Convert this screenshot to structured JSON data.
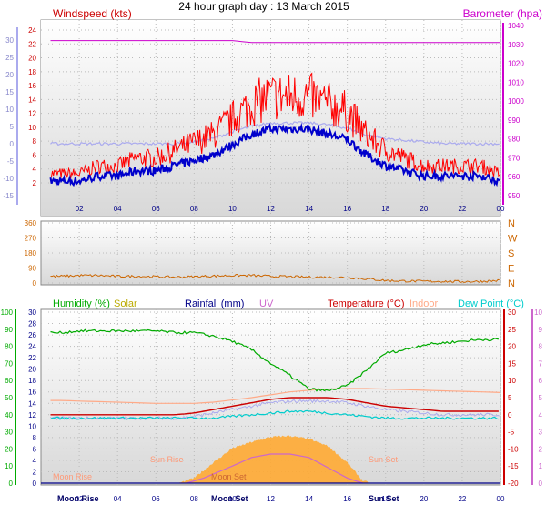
{
  "title": "24 hour graph day : 13 March 2015",
  "x_ticks": [
    "02",
    "04",
    "06",
    "08",
    "10",
    "12",
    "14",
    "16",
    "18",
    "20",
    "22",
    "00"
  ],
  "moon_labels": [
    "Moon Rise",
    "Moon Set",
    "Sun Set"
  ],
  "colors": {
    "wind": "#ff0000",
    "gust_avg": "#0000cc",
    "baro": "#cc00cc",
    "temp_light": "#aaaaee",
    "direction": "#cc6600",
    "humidity": "#00aa00",
    "solar": "#ffaa33",
    "uv": "#cc66cc",
    "temperature": "#cc0000",
    "indoor": "#ffaa88",
    "dewpoint": "#00cccc",
    "rainfall": "#000088"
  },
  "panels": {
    "wind": {
      "title": "Windspeed (kts)",
      "right_title": "Barometer (hpa)",
      "left_ticks": [
        "30",
        "25",
        "20",
        "15",
        "10",
        "5",
        "0",
        "-5",
        "-10",
        "-15"
      ],
      "wind_ticks": [
        "24",
        "22",
        "20",
        "18",
        "16",
        "14",
        "12",
        "10",
        "8",
        "6",
        "4",
        "2"
      ],
      "right_ticks": [
        "1040",
        "1030",
        "1020",
        "1010",
        "1000",
        "990",
        "980",
        "970",
        "960",
        "950"
      ]
    },
    "direction": {
      "ticks": [
        "360",
        "270",
        "180",
        "90",
        "0"
      ],
      "compass": [
        "N",
        "W",
        "S",
        "E",
        "N"
      ]
    },
    "climate": {
      "legend": {
        "humidity": "Humidity (%)",
        "solar": "Solar",
        "rainfall": "Rainfall (mm)",
        "uv": "UV",
        "temperature": "Temperature (°C)",
        "indoor": "Indoor",
        "dewpoint": "Dew Point (°C)"
      },
      "humidity_ticks": [
        "100",
        "90",
        "80",
        "70",
        "60",
        "50",
        "40",
        "30",
        "20",
        "10",
        "0"
      ],
      "rain_ticks": [
        "30",
        "28",
        "26",
        "24",
        "22",
        "20",
        "18",
        "16",
        "14",
        "12",
        "10",
        "8",
        "6",
        "4",
        "2",
        "0"
      ],
      "temp_ticks": [
        "30",
        "25",
        "20",
        "15",
        "10",
        "5",
        "0",
        "-5",
        "-10",
        "-15",
        "-20"
      ],
      "uv_ticks": [
        "10",
        "9",
        "8",
        "7",
        "6",
        "5",
        "4",
        "3",
        "2",
        "1",
        "0"
      ],
      "sun_labels": [
        "Sun Rise",
        "Sun Set",
        "Moon Rise",
        "Moon Set"
      ]
    }
  },
  "chart_data": [
    {
      "type": "line",
      "title": "Windspeed (kts)",
      "x": [
        1,
        2,
        3,
        4,
        5,
        6,
        7,
        8,
        9,
        10,
        11,
        12,
        13,
        14,
        15,
        16,
        17,
        18,
        19,
        20,
        21,
        22,
        23,
        24
      ],
      "series": [
        {
          "name": "Windspeed (kts)",
          "values": [
            3,
            3,
            4,
            4,
            5,
            5,
            6,
            7,
            8,
            10,
            12,
            13,
            13,
            13,
            12,
            11,
            8,
            6,
            5,
            4,
            4,
            4,
            4,
            3
          ]
        },
        {
          "name": "Barometer (hpa)",
          "values": [
            1032,
            1032,
            1032,
            1032,
            1032,
            1032,
            1032,
            1032,
            1032,
            1032,
            1031,
            1031,
            1031,
            1031,
            1031,
            1031,
            1031,
            1031,
            1031,
            1031,
            1031,
            1031,
            1031,
            1031
          ]
        }
      ],
      "ylim": [
        -15,
        30
      ]
    },
    {
      "type": "line",
      "title": "",
      "x": [
        1,
        2,
        3,
        4,
        5,
        6,
        7,
        8,
        9,
        10,
        11,
        12,
        13,
        14,
        15,
        16,
        17,
        18,
        19,
        20,
        21,
        22,
        23,
        24
      ],
      "series": [
        {
          "name": "",
          "values": [
            40,
            45,
            45,
            40,
            40,
            38,
            35,
            38,
            42,
            45,
            45,
            40,
            38,
            35,
            35,
            33,
            25,
            15,
            12,
            10,
            10,
            8,
            10,
            15
          ]
        }
      ],
      "ylim": [
        0,
        360
      ]
    },
    {
      "type": "line",
      "title": "",
      "x": [
        1,
        2,
        3,
        4,
        5,
        6,
        7,
        8,
        9,
        10,
        11,
        12,
        13,
        14,
        15,
        16,
        17,
        18,
        19,
        20,
        21,
        22,
        23,
        24
      ],
      "series": [
        {
          "name": "Humidity (%)",
          "values": [
            88,
            89,
            89,
            89,
            89,
            89,
            88,
            88,
            86,
            83,
            78,
            70,
            63,
            55,
            54,
            57,
            66,
            76,
            78,
            81,
            82,
            83,
            84,
            84
          ]
        },
        {
          "name": "Temperature (°C)",
          "values": [
            0,
            0,
            0,
            0,
            0,
            0,
            0,
            0.5,
            1.5,
            2.5,
            3.5,
            4.5,
            5,
            5,
            5,
            4.5,
            3.5,
            2.5,
            2,
            1.5,
            1,
            1,
            1,
            1
          ]
        },
        {
          "name": "Dew Point (°C)",
          "values": [
            -1,
            -1,
            -1,
            -1,
            -1,
            -1,
            -1,
            -1,
            -1,
            -0.5,
            0,
            0.5,
            1,
            1,
            0.5,
            0,
            -0.5,
            -1,
            -1,
            -1,
            -1,
            -1,
            -1,
            -1
          ]
        }
      ],
      "ylim": [
        0,
        100
      ]
    }
  ]
}
